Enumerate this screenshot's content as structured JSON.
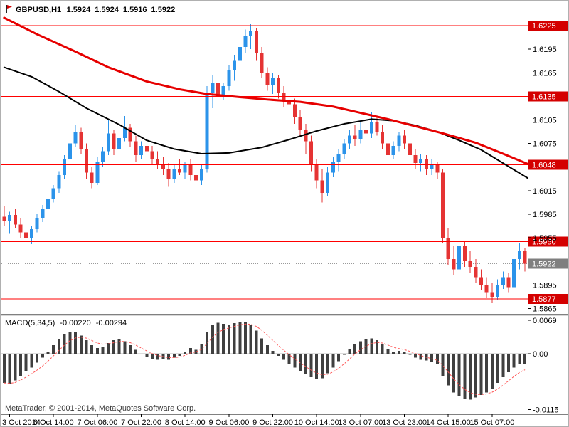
{
  "header": {
    "symbol": "GBPUSD,H1",
    "open": "1.5924",
    "high": "1.5924",
    "low": "1.5916",
    "close": "1.5922"
  },
  "indicator": {
    "name": "MACD(5,34,5)",
    "macd_value": "-0.00220",
    "signal_value": "-0.00294"
  },
  "footer": {
    "copyright": "MetaTrader, © 2001-2014, MetaQuotes Software Corp."
  },
  "colors": {
    "bull": "#2b93ea",
    "bear": "#e53333",
    "level_line": "#ff0000",
    "level_box": "#d40000",
    "current_box": "#7f7f7f",
    "current_line": "#9a9a9a",
    "histogram": "#3f3f3f",
    "signal": "#ff5555",
    "axis_line": "#808080",
    "zero_line": "#b8b8b8"
  },
  "chart_data": [
    {
      "type": "candlestick",
      "title": "GBPUSD,H1",
      "ylim": [
        1.586,
        1.6235
      ],
      "x_labels": [
        "3 Oct 2014",
        "6 Oct 14:00",
        "7 Oct 06:00",
        "7 Oct 22:00",
        "8 Oct 14:00",
        "9 Oct 06:00",
        "9 Oct 22:00",
        "10 Oct 14:00",
        "13 Oct 07:00",
        "13 Oct 23:00",
        "14 Oct 15:00",
        "15 Oct 07:00"
      ],
      "x_label_indices": [
        1,
        9,
        17,
        25,
        33,
        41,
        49,
        57,
        65,
        73,
        81,
        89
      ],
      "y_ticks": [
        1.6195,
        1.6165,
        1.6105,
        1.6075,
        1.6015,
        1.5985,
        1.5955,
        1.5895,
        1.5865
      ],
      "levels": [
        {
          "price": 1.6225,
          "label": "1.6225"
        },
        {
          "price": 1.6135,
          "label": "1.6135"
        },
        {
          "price": 1.6048,
          "label": "1.6048"
        },
        {
          "price": 1.595,
          "label": "1.5950"
        },
        {
          "price": 1.5877,
          "label": "1.5877"
        }
      ],
      "current_price": {
        "price": 1.5922,
        "label": "1.5922"
      },
      "moving_averages": [
        {
          "name": "ma-black-line",
          "color": "#000000",
          "width": 2,
          "points": [
            [
              0,
              1.6172
            ],
            [
              5,
              1.616
            ],
            [
              10,
              1.6141
            ],
            [
              15,
              1.612
            ],
            [
              21,
              1.6099
            ],
            [
              26,
              1.6079
            ],
            [
              31,
              1.6068
            ],
            [
              36,
              1.6062
            ],
            [
              41,
              1.6063
            ],
            [
              47,
              1.607
            ],
            [
              52,
              1.608
            ],
            [
              57,
              1.6091
            ],
            [
              62,
              1.61
            ],
            [
              67,
              1.6106
            ],
            [
              71,
              1.6104
            ],
            [
              75,
              1.6098
            ],
            [
              79,
              1.609
            ],
            [
              83,
              1.6079
            ],
            [
              87,
              1.6067
            ],
            [
              91,
              1.605
            ],
            [
              95.5,
              1.6031
            ]
          ]
        },
        {
          "name": "ma-red-line",
          "color": "#e60000",
          "width": 3,
          "points": [
            [
              0,
              1.6235
            ],
            [
              6,
              1.6214
            ],
            [
              13,
              1.6192
            ],
            [
              19,
              1.6172
            ],
            [
              26,
              1.6154
            ],
            [
              32,
              1.6144
            ],
            [
              37,
              1.6138
            ],
            [
              43,
              1.6134
            ],
            [
              48,
              1.6131
            ],
            [
              54,
              1.6128
            ],
            [
              60,
              1.6122
            ],
            [
              65,
              1.6114
            ],
            [
              70,
              1.6106
            ],
            [
              75,
              1.6097
            ],
            [
              80,
              1.6088
            ],
            [
              86,
              1.6076
            ],
            [
              91,
              1.6062
            ],
            [
              95.5,
              1.6049
            ]
          ]
        }
      ],
      "candles": [
        [
          1.5982,
          1.5995,
          1.597,
          1.5976
        ],
        [
          1.5976,
          1.5988,
          1.596,
          1.5984
        ],
        [
          1.5984,
          1.5992,
          1.5968,
          1.5972
        ],
        [
          1.5972,
          1.598,
          1.5955,
          1.5962
        ],
        [
          1.5962,
          1.5972,
          1.5948,
          1.5955
        ],
        [
          1.5955,
          1.597,
          1.5947,
          1.5966
        ],
        [
          1.5966,
          1.5985,
          1.5962,
          1.598
        ],
        [
          1.598,
          1.5997,
          1.5975,
          1.5992
        ],
        [
          1.5992,
          1.601,
          1.5988,
          1.6005
        ],
        [
          1.6005,
          1.6022,
          1.6,
          1.6018
        ],
        [
          1.6018,
          1.604,
          1.6012,
          1.6035
        ],
        [
          1.6035,
          1.606,
          1.603,
          1.6055
        ],
        [
          1.6055,
          1.608,
          1.605,
          1.6075
        ],
        [
          1.6075,
          1.6098,
          1.607,
          1.609
        ],
        [
          1.609,
          1.6095,
          1.6062,
          1.6068
        ],
        [
          1.6068,
          1.6075,
          1.603,
          1.6038
        ],
        [
          1.6038,
          1.6045,
          1.6018,
          1.6025
        ],
        [
          1.6025,
          1.6058,
          1.6022,
          1.6052
        ],
        [
          1.6052,
          1.607,
          1.6045,
          1.6065
        ],
        [
          1.6065,
          1.6105,
          1.606,
          1.6088
        ],
        [
          1.6088,
          1.6092,
          1.606,
          1.6068
        ],
        [
          1.6068,
          1.609,
          1.6062,
          1.6082
        ],
        [
          1.6082,
          1.611,
          1.6078,
          1.6095
        ],
        [
          1.6095,
          1.61,
          1.607,
          1.6078
        ],
        [
          1.6078,
          1.6085,
          1.6052,
          1.606
        ],
        [
          1.606,
          1.6078,
          1.6055,
          1.6072
        ],
        [
          1.6072,
          1.6082,
          1.6058,
          1.6065
        ],
        [
          1.6065,
          1.6072,
          1.6048,
          1.6055
        ],
        [
          1.6055,
          1.6065,
          1.6042,
          1.6048
        ],
        [
          1.6048,
          1.6058,
          1.6035,
          1.6042
        ],
        [
          1.6042,
          1.605,
          1.602,
          1.603
        ],
        [
          1.603,
          1.6048,
          1.6025,
          1.6042
        ],
        [
          1.6042,
          1.6055,
          1.6035,
          1.6038
        ],
        [
          1.6038,
          1.6052,
          1.603,
          1.6048
        ],
        [
          1.6048,
          1.6055,
          1.6028,
          1.6035
        ],
        [
          1.6035,
          1.6042,
          1.6008,
          1.6028
        ],
        [
          1.6028,
          1.6048,
          1.6022,
          1.6042
        ],
        [
          1.6042,
          1.6148,
          1.6038,
          1.614
        ],
        [
          1.614,
          1.6162,
          1.612,
          1.6152
        ],
        [
          1.6152,
          1.6158,
          1.6128,
          1.6135
        ],
        [
          1.6135,
          1.6152,
          1.613,
          1.6148
        ],
        [
          1.6148,
          1.6175,
          1.6142,
          1.6168
        ],
        [
          1.6168,
          1.6188,
          1.6155,
          1.618
        ],
        [
          1.618,
          1.6205,
          1.6172,
          1.6198
        ],
        [
          1.6198,
          1.622,
          1.619,
          1.6212
        ],
        [
          1.6212,
          1.6227,
          1.6195,
          1.6218
        ],
        [
          1.6218,
          1.6222,
          1.618,
          1.619
        ],
        [
          1.619,
          1.6198,
          1.6158,
          1.6165
        ],
        [
          1.6165,
          1.6172,
          1.6142,
          1.615
        ],
        [
          1.615,
          1.6165,
          1.6138,
          1.6158
        ],
        [
          1.6158,
          1.6162,
          1.6132,
          1.614
        ],
        [
          1.614,
          1.6148,
          1.6122,
          1.613
        ],
        [
          1.613,
          1.6142,
          1.6118,
          1.6125
        ],
        [
          1.6125,
          1.6132,
          1.61,
          1.6108
        ],
        [
          1.6108,
          1.6118,
          1.6085,
          1.6092
        ],
        [
          1.6092,
          1.61,
          1.6062,
          1.6078
        ],
        [
          1.6078,
          1.6085,
          1.604,
          1.6048
        ],
        [
          1.6048,
          1.6055,
          1.6018,
          1.6028
        ],
        [
          1.6028,
          1.6042,
          1.6,
          1.6012
        ],
        [
          1.6012,
          1.6045,
          1.6008,
          1.6038
        ],
        [
          1.6038,
          1.6058,
          1.6032,
          1.6052
        ],
        [
          1.6052,
          1.6068,
          1.604,
          1.6062
        ],
        [
          1.6062,
          1.608,
          1.6055,
          1.6075
        ],
        [
          1.6075,
          1.6092,
          1.6068,
          1.6085
        ],
        [
          1.6085,
          1.6098,
          1.6072,
          1.608
        ],
        [
          1.608,
          1.6105,
          1.6075,
          1.6092
        ],
        [
          1.6092,
          1.61,
          1.608,
          1.6088
        ],
        [
          1.6088,
          1.6115,
          1.6082,
          1.6102
        ],
        [
          1.6102,
          1.611,
          1.6085,
          1.609
        ],
        [
          1.609,
          1.6098,
          1.6068,
          1.6075
        ],
        [
          1.6075,
          1.6085,
          1.605,
          1.606
        ],
        [
          1.606,
          1.6078,
          1.6055,
          1.6072
        ],
        [
          1.6072,
          1.609,
          1.6065,
          1.6085
        ],
        [
          1.6085,
          1.6092,
          1.6068,
          1.6075
        ],
        [
          1.6075,
          1.6082,
          1.6052,
          1.606
        ],
        [
          1.606,
          1.6068,
          1.6042,
          1.605
        ],
        [
          1.605,
          1.6062,
          1.604,
          1.6055
        ],
        [
          1.6055,
          1.606,
          1.6035,
          1.6042
        ],
        [
          1.6042,
          1.6055,
          1.6035,
          1.6048
        ],
        [
          1.6048,
          1.6052,
          1.603,
          1.6038
        ],
        [
          1.6038,
          1.6042,
          1.5948,
          1.5955
        ],
        [
          1.5955,
          1.5968,
          1.592,
          1.5928
        ],
        [
          1.5928,
          1.5945,
          1.5908,
          1.5915
        ],
        [
          1.5915,
          1.5952,
          1.591,
          1.5945
        ],
        [
          1.5945,
          1.595,
          1.5918,
          1.5925
        ],
        [
          1.5925,
          1.5938,
          1.591,
          1.5918
        ],
        [
          1.5918,
          1.5928,
          1.5898,
          1.5905
        ],
        [
          1.5905,
          1.5915,
          1.5888,
          1.5895
        ],
        [
          1.5895,
          1.5905,
          1.5878,
          1.5885
        ],
        [
          1.5885,
          1.5898,
          1.5872,
          1.588
        ],
        [
          1.588,
          1.5902,
          1.5876,
          1.5895
        ],
        [
          1.5895,
          1.5912,
          1.589,
          1.5905
        ],
        [
          1.5905,
          1.591,
          1.5885,
          1.5892
        ],
        [
          1.5892,
          1.5952,
          1.5888,
          1.5928
        ],
        [
          1.5928,
          1.5948,
          1.5915,
          1.5938
        ],
        [
          1.5938,
          1.5942,
          1.5912,
          1.5922
        ]
      ]
    },
    {
      "type": "bar",
      "title": "MACD(5,34,5)",
      "ylim": [
        -0.012,
        0.0078
      ],
      "signal_period": 5,
      "y_ticks": [
        {
          "v": 0.0069,
          "label": "0.0069"
        },
        {
          "v": 0,
          "label": "0.00"
        },
        {
          "v": -0.0115,
          "label": "-0.0115"
        }
      ],
      "values": [
        -0.006,
        -0.0063,
        -0.0055,
        -0.0045,
        -0.0035,
        -0.0028,
        -0.0018,
        -0.0008,
        0.0005,
        0.0018,
        0.003,
        0.004,
        0.0045,
        0.0044,
        0.0038,
        0.0028,
        0.0018,
        0.0012,
        0.0015,
        0.0022,
        0.0028,
        0.003,
        0.0026,
        0.0018,
        0.0008,
        0,
        -0.0006,
        -0.001,
        -0.0012,
        -0.001,
        -0.0012,
        -0.0008,
        -0.0004,
        0.0004,
        0.0012,
        0.0008,
        0.002,
        0.0045,
        0.006,
        0.0064,
        0.0062,
        0.006,
        0.0063,
        0.0066,
        0.0065,
        0.006,
        0.0048,
        0.0032,
        0.0018,
        0.0006,
        -0.0004,
        -0.0012,
        -0.002,
        -0.0028,
        -0.0035,
        -0.0042,
        -0.0048,
        -0.0052,
        -0.005,
        -0.004,
        -0.0028,
        -0.0015,
        -0.0002,
        0.001,
        0.002,
        0.0026,
        0.003,
        0.0032,
        0.0028,
        0.002,
        0.001,
        0.0004,
        0.0006,
        0.0004,
        -0.0002,
        -0.0008,
        -0.0012,
        -0.0014,
        -0.0016,
        -0.002,
        -0.0045,
        -0.0065,
        -0.008,
        -0.0088,
        -0.0092,
        -0.0094,
        -0.009,
        -0.0085,
        -0.008,
        -0.0072,
        -0.006,
        -0.0048,
        -0.0038,
        -0.0028,
        -0.0022,
        -0.0022
      ]
    }
  ]
}
